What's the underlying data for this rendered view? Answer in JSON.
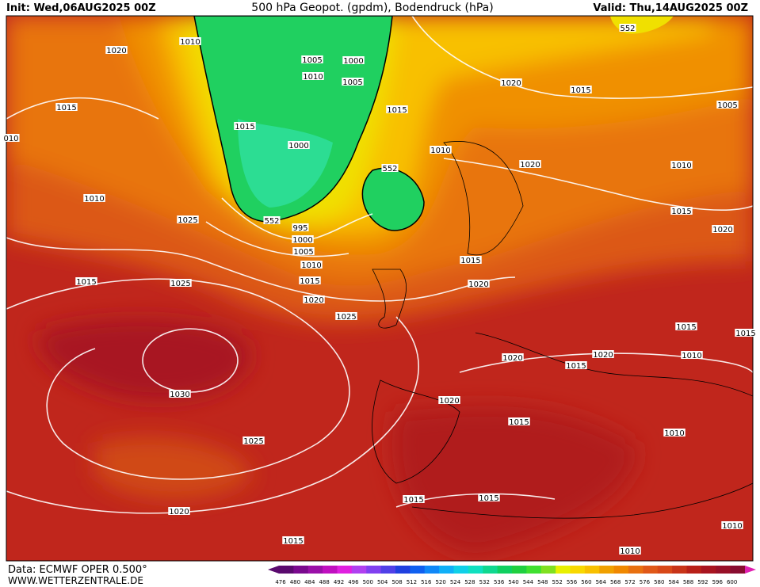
{
  "header": {
    "init": "Init: Wed,06AUG2025 00Z",
    "title": "500 hPa Geopot. (gpdm), Bodendruck (hPa)",
    "valid": "Valid: Thu,14AUG2025 00Z"
  },
  "map": {
    "isobar_labels": [
      "1010",
      "1020",
      "1005",
      "1000",
      "1010",
      "1005",
      "1015",
      "1015",
      "1015",
      "1000",
      "010",
      "1010",
      "552",
      "552",
      "552",
      "1020",
      "1015",
      "1005",
      "1020",
      "1010",
      "1015",
      "1020",
      "1010",
      "1025",
      "995",
      "1000",
      "1005",
      "1010",
      "1015",
      "1015",
      "1020",
      "1020",
      "1015",
      "1025",
      "1025",
      "1015",
      "1015",
      "1020",
      "1020",
      "1015",
      "1010",
      "1030",
      "1020",
      "1015",
      "1010",
      "1025",
      "1015",
      "1015",
      "1020",
      "1015",
      "1010",
      "1010"
    ]
  },
  "footer": {
    "source": "Data: ECMWF OPER 0.500°",
    "site": "WWW.WETTERZENTRALE.DE"
  },
  "colorbar": {
    "labels": [
      476,
      480,
      484,
      488,
      492,
      496,
      500,
      504,
      508,
      512,
      516,
      520,
      524,
      528,
      532,
      536,
      540,
      544,
      548,
      552,
      556,
      560,
      564,
      568,
      572,
      576,
      580,
      584,
      588,
      592,
      596,
      600
    ],
    "colors": [
      "#5a0a6e",
      "#7a0a8e",
      "#9a10a8",
      "#c010c0",
      "#e020e0",
      "#b040f0",
      "#8040f0",
      "#5040e8",
      "#2040e0",
      "#1060f0",
      "#1088f8",
      "#10b0f8",
      "#10d0e8",
      "#10e0c0",
      "#10d890",
      "#10d060",
      "#20d040",
      "#40e030",
      "#80e020",
      "#e8f000",
      "#f8d800",
      "#f8c000",
      "#f0a000",
      "#f08800",
      "#e87010",
      "#e05818",
      "#d84818",
      "#c83418",
      "#b82018",
      "#a81420",
      "#981028",
      "#880c30"
    ]
  }
}
